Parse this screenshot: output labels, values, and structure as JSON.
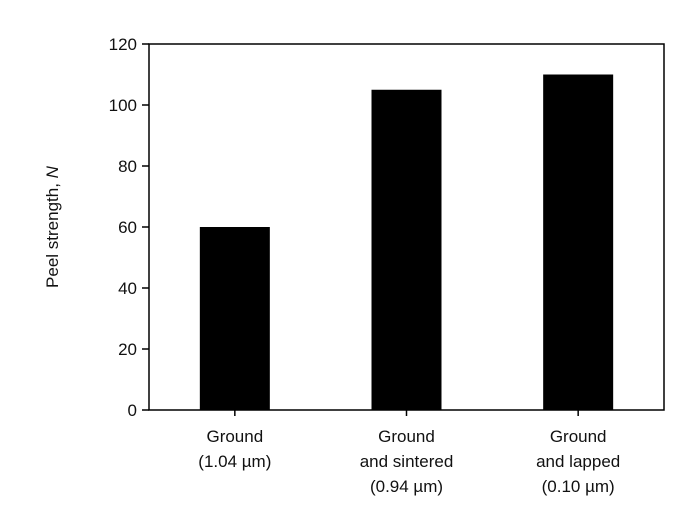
{
  "chart_data": {
    "type": "bar",
    "categories": [
      [
        "Ground",
        "(1.04 µm)"
      ],
      [
        "Ground",
        "and sintered",
        "(0.94 µm)"
      ],
      [
        "Ground",
        "and lapped",
        "(0.10 µm)"
      ]
    ],
    "values": [
      60,
      105,
      110
    ],
    "title": "",
    "xlabel": "",
    "ylabel": "Peel strength, ",
    "ylabel_italic": "N",
    "ylim": [
      0,
      120
    ],
    "yticks": [
      0,
      20,
      40,
      60,
      80,
      100,
      120
    ],
    "grid": false,
    "bar_color": "#000000"
  }
}
